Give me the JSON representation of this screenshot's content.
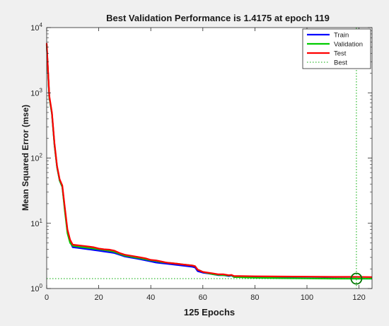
{
  "chart_data": {
    "type": "line",
    "title": "Best Validation Performance is 1.4175 at epoch 119",
    "xlabel": "125 Epochs",
    "ylabel": "Mean Squared Error  (mse)",
    "xlim": [
      0,
      125
    ],
    "ylim": [
      1,
      10000
    ],
    "yscale": "log",
    "grid": false,
    "legend_position": "top-right",
    "x_ticks": [
      0,
      20,
      40,
      60,
      80,
      100,
      120
    ],
    "x_tick_labels": [
      "0",
      "20",
      "40",
      "60",
      "80",
      "100",
      "120"
    ],
    "y_ticks": [
      1,
      10,
      100,
      1000,
      10000
    ],
    "y_tick_labels": [
      {
        "base": "10",
        "exp": "0"
      },
      {
        "base": "10",
        "exp": "1"
      },
      {
        "base": "10",
        "exp": "2"
      },
      {
        "base": "10",
        "exp": "3"
      },
      {
        "base": "10",
        "exp": "4"
      }
    ],
    "series": [
      {
        "name": "Train",
        "color": "#0000ff",
        "x": [
          0,
          1,
          2,
          3,
          4,
          5,
          6,
          7,
          8,
          9,
          10,
          12,
          14,
          16,
          18,
          20,
          22,
          24,
          26,
          28,
          30,
          32,
          34,
          36,
          38,
          40,
          42,
          44,
          46,
          48,
          50,
          52,
          54,
          56,
          57,
          58,
          60,
          62,
          64,
          66,
          68,
          70,
          71,
          72,
          74,
          80,
          90,
          100,
          110,
          119,
          125
        ],
        "y": [
          5500,
          850,
          480,
          160,
          72,
          45,
          36,
          16,
          7.5,
          5.2,
          4.3,
          4.2,
          4.1,
          4.0,
          3.9,
          3.8,
          3.7,
          3.6,
          3.5,
          3.3,
          3.1,
          3.0,
          2.9,
          2.8,
          2.7,
          2.6,
          2.5,
          2.45,
          2.4,
          2.35,
          2.3,
          2.25,
          2.2,
          2.15,
          2.1,
          1.85,
          1.75,
          1.7,
          1.65,
          1.6,
          1.6,
          1.55,
          1.58,
          1.5,
          1.5,
          1.48,
          1.46,
          1.44,
          1.43,
          1.42,
          1.42
        ]
      },
      {
        "name": "Validation",
        "color": "#00cc00",
        "x": [
          0,
          1,
          2,
          3,
          4,
          5,
          6,
          7,
          8,
          9,
          10,
          12,
          14,
          16,
          18,
          20,
          22,
          24,
          26,
          28,
          30,
          32,
          34,
          36,
          38,
          40,
          42,
          44,
          46,
          48,
          50,
          52,
          54,
          56,
          57,
          58,
          60,
          62,
          64,
          66,
          68,
          70,
          71,
          72,
          74,
          80,
          90,
          100,
          110,
          119,
          125
        ],
        "y": [
          5500,
          850,
          480,
          160,
          72,
          45,
          36,
          15,
          7.0,
          5.0,
          4.5,
          4.4,
          4.3,
          4.2,
          4.1,
          4.0,
          3.9,
          3.8,
          3.65,
          3.4,
          3.2,
          3.1,
          3.0,
          2.9,
          2.8,
          2.7,
          2.65,
          2.55,
          2.5,
          2.45,
          2.4,
          2.35,
          2.3,
          2.25,
          2.2,
          1.95,
          1.8,
          1.72,
          1.65,
          1.62,
          1.6,
          1.58,
          1.6,
          1.5,
          1.49,
          1.46,
          1.44,
          1.43,
          1.42,
          1.4175,
          1.418
        ]
      },
      {
        "name": "Test",
        "color": "#ff0000",
        "x": [
          0,
          1,
          2,
          3,
          4,
          5,
          6,
          7,
          8,
          9,
          10,
          12,
          14,
          16,
          18,
          20,
          22,
          24,
          26,
          28,
          30,
          32,
          34,
          36,
          38,
          40,
          42,
          44,
          46,
          48,
          50,
          52,
          54,
          56,
          57,
          58,
          60,
          62,
          64,
          66,
          68,
          70,
          71,
          72,
          74,
          80,
          90,
          100,
          110,
          119,
          125
        ],
        "y": [
          5800,
          900,
          500,
          170,
          75,
          47,
          38,
          17,
          8.0,
          5.6,
          4.7,
          4.6,
          4.5,
          4.4,
          4.3,
          4.1,
          4.0,
          3.95,
          3.8,
          3.5,
          3.3,
          3.2,
          3.1,
          3.0,
          2.9,
          2.75,
          2.7,
          2.6,
          2.5,
          2.45,
          2.4,
          2.35,
          2.3,
          2.25,
          2.2,
          1.95,
          1.8,
          1.75,
          1.7,
          1.65,
          1.65,
          1.6,
          1.62,
          1.55,
          1.55,
          1.54,
          1.53,
          1.52,
          1.51,
          1.51,
          1.5
        ]
      }
    ],
    "best": {
      "name": "Best",
      "epoch": 119,
      "value": 1.4175,
      "color": "#00aa00"
    }
  }
}
